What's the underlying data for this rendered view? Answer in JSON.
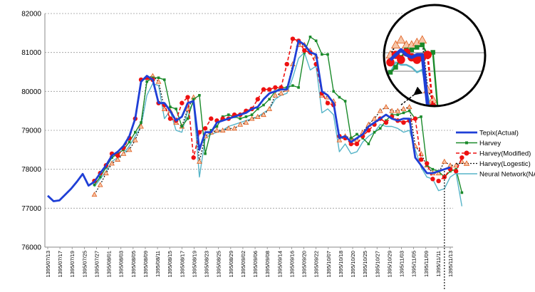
{
  "chart_data": {
    "type": "line",
    "title": "",
    "xlabel": "",
    "ylabel": "",
    "ylim": [
      76000,
      82000
    ],
    "y_ticks": [
      "76000",
      "77000",
      "78000",
      "79000",
      "80000",
      "81000",
      "82000"
    ],
    "y_tick_values": [
      76000,
      77000,
      78000,
      79000,
      80000,
      81000,
      82000
    ],
    "grid": "horizontal-dashed",
    "legend_position": "right",
    "x_tick_labels": [
      "1395/07/13",
      "1395/07/17",
      "1395/07/19",
      "1395/07/25",
      "1395/07/27",
      "1395/08/01",
      "1395/08/03",
      "1395/08/05",
      "1395/08/09",
      "1395/08/11",
      "1395/08/15",
      "1395/08/17",
      "1395/08/19",
      "1395/08/23",
      "1395/08/25",
      "1395/08/29",
      "1395/09/02",
      "1395/09/06",
      "1395/09/08",
      "1395/09/14",
      "1395/09/16",
      "1395/09/20",
      "1395/09/22",
      "1395/10/07",
      "1395/10/18",
      "1395/10/20",
      "1395/10/25",
      "1395/10/27",
      "1395/10/29",
      "1395/11/03",
      "1395/11/05",
      "1395/11/09",
      "1395/11/11",
      "1395/11/13"
    ],
    "n_points": 70,
    "series": [
      {
        "name": "Tepix(Actual)",
        "color": "#1f3fd6",
        "style": "solid-thick",
        "marker": "none",
        "start": 0,
        "values": [
          77320,
          77180,
          77200,
          77350,
          77500,
          77680,
          77880,
          77580,
          77680,
          77900,
          78100,
          78350,
          78450,
          78600,
          78850,
          79300,
          80250,
          80400,
          80300,
          79700,
          79700,
          79500,
          79250,
          79350,
          79700,
          79750,
          78500,
          78950,
          78950,
          79200,
          79250,
          79300,
          79350,
          79400,
          79450,
          79550,
          79600,
          79800,
          79950,
          80000,
          80050,
          80050,
          80600,
          81300,
          81200,
          81000,
          80950,
          80000,
          79900,
          79700,
          78800,
          78850,
          78700,
          78800,
          78900,
          79100,
          79200,
          79300,
          79400,
          79300,
          79250,
          79300,
          79300,
          78300,
          78100,
          77900,
          77900,
          77950,
          78000,
          78050
        ]
      },
      {
        "name": "Harvey",
        "color": "#1a8a2a",
        "style": "solid",
        "marker": "square",
        "start": 8,
        "values": [
          77600,
          77800,
          78050,
          78300,
          78400,
          78500,
          78700,
          78950,
          79200,
          80250,
          80350,
          80350,
          80300,
          79600,
          79550,
          79100,
          79300,
          79800,
          79900,
          78400,
          79000,
          79100,
          79350,
          79400,
          79350,
          79300,
          79350,
          79400,
          79550,
          79650,
          79800,
          80000,
          80100,
          80100,
          80150,
          80100,
          81000,
          81400,
          81300,
          80950,
          80950,
          80000,
          79850,
          79750,
          78800,
          78900,
          78800,
          78650,
          78950,
          79050,
          79250,
          79400,
          79400,
          79450,
          79500,
          79300,
          79350,
          78100,
          78000,
          77950,
          77800,
          77950,
          78000,
          77400
        ]
      },
      {
        "name": "Harvey(Modified)",
        "color": "#ee1111",
        "style": "dash",
        "marker": "circle",
        "start": 8,
        "values": [
          77700,
          77900,
          78100,
          78400,
          78350,
          78550,
          78800,
          79300,
          80300,
          80350,
          80300,
          79700,
          79650,
          79300,
          79250,
          79700,
          79850,
          78300,
          78950,
          79050,
          79300,
          79250,
          79300,
          79300,
          79400,
          79400,
          79500,
          79550,
          79800,
          80050,
          80050,
          80100,
          80100,
          80700,
          81350,
          81300,
          81050,
          81000,
          80700,
          79950,
          79700,
          79650,
          78850,
          78800,
          78650,
          78650,
          78850,
          79000,
          79150,
          79300,
          79200,
          79350,
          79250,
          79200,
          79250,
          79300,
          78250,
          78150,
          77750,
          77700,
          77800,
          78000,
          77950,
          78300
        ]
      },
      {
        "name": "Harvey(Logestic)",
        "color": "#111111",
        "style": "dot",
        "marker": "triangle",
        "start": 8,
        "values": [
          77350,
          77600,
          77900,
          78150,
          78250,
          78400,
          78500,
          78750,
          79100,
          80350,
          80400,
          80250,
          79550,
          79500,
          79200,
          79100,
          79550,
          79850,
          78200,
          78850,
          78950,
          79000,
          79000,
          79050,
          79050,
          79150,
          79200,
          79300,
          79350,
          79400,
          79550,
          79900,
          79950,
          80050,
          80700,
          81200,
          81200,
          81050,
          80900,
          79900,
          79850,
          79750,
          78750,
          78850,
          78800,
          78750,
          78950,
          79150,
          79300,
          79500,
          79600,
          79500,
          79500,
          79550,
          79600,
          78600,
          78400,
          78100,
          77900,
          77900,
          78200,
          78100,
          78100,
          78200
        ]
      },
      {
        "name": "Neural Network(NARX)",
        "color": "#56b4c8",
        "style": "solid",
        "marker": "none",
        "start": 8,
        "values": [
          77550,
          77750,
          77950,
          78200,
          78300,
          78400,
          78600,
          78850,
          79100,
          79900,
          80200,
          80150,
          79300,
          79500,
          79000,
          78950,
          79500,
          79700,
          77800,
          78800,
          78900,
          78950,
          79000,
          79100,
          79150,
          79200,
          79250,
          79300,
          79350,
          79450,
          79550,
          79800,
          79900,
          79950,
          80350,
          80850,
          81000,
          80550,
          80650,
          79450,
          79550,
          79400,
          78450,
          78650,
          78400,
          78450,
          78700,
          78850,
          78950,
          79150,
          79100,
          79100,
          79050,
          78950,
          79000,
          78500,
          78050,
          77800,
          77750,
          77450,
          77500,
          77800,
          77900,
          77050
        ]
      }
    ]
  }
}
